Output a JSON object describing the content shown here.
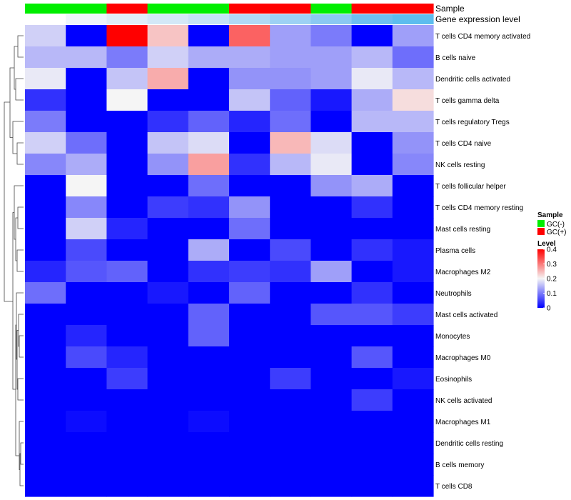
{
  "chart_data": {
    "type": "heatmap",
    "annotations": [
      {
        "name": "Sample",
        "values": [
          "GC(-)",
          "GC(-)",
          "GC(+)",
          "GC(-)",
          "GC(-)",
          "GC(+)",
          "GC(+)",
          "GC(-)",
          "GC(+)",
          "GC(+)"
        ],
        "colors": {
          "GC(-)": "#00ee00",
          "GC(+)": "#ff0000"
        }
      },
      {
        "name": "Gene expression level",
        "colors_per_column": [
          "#ffffff",
          "#eef5fb",
          "#e0eef8",
          "#d3e8f7",
          "#c5e2f6",
          "#b0d9f5",
          "#9dd1f4",
          "#8bc9f2",
          "#6ebef0",
          "#5dbdee"
        ]
      }
    ],
    "rows": [
      "T cells CD4 memory activated",
      "B cells naive",
      "Dendritic cells activated",
      "T cells gamma delta",
      "T cells regulatory  Tregs",
      "T cells CD4 naive",
      "NK cells resting",
      "T cells follicular helper",
      "T cells CD4 memory resting",
      "Mast cells resting",
      "Plasma cells",
      "Macrophages M2",
      "Neutrophils",
      "Mast cells activated",
      "Monocytes",
      "Macrophages M0",
      "Eosinophils",
      "NK cells activated",
      "Macrophages M1",
      "Dendritic cells resting",
      "B cells memory",
      "T cells CD8"
    ],
    "values": [
      [
        0.17,
        0.0,
        0.4,
        0.24,
        0.0,
        0.32,
        0.13,
        0.1,
        0.0,
        0.13
      ],
      [
        0.15,
        0.15,
        0.1,
        0.17,
        0.14,
        0.14,
        0.13,
        0.13,
        0.15,
        0.09
      ],
      [
        0.19,
        0.0,
        0.16,
        0.26,
        0.0,
        0.12,
        0.12,
        0.13,
        0.19,
        0.15
      ],
      [
        0.04,
        0.0,
        0.2,
        0.0,
        0.0,
        0.16,
        0.08,
        0.02,
        0.14,
        0.22
      ],
      [
        0.1,
        0.0,
        0.0,
        0.04,
        0.08,
        0.03,
        0.09,
        0.0,
        0.15,
        0.15
      ],
      [
        0.17,
        0.09,
        0.0,
        0.16,
        0.18,
        0.0,
        0.25,
        0.18,
        0.0,
        0.12
      ],
      [
        0.11,
        0.14,
        0.0,
        0.12,
        0.27,
        0.04,
        0.15,
        0.19,
        0.0,
        0.11
      ],
      [
        0.0,
        0.2,
        0.0,
        0.0,
        0.09,
        0.0,
        0.0,
        0.12,
        0.14,
        0.0
      ],
      [
        0.0,
        0.11,
        0.0,
        0.05,
        0.04,
        0.12,
        0.0,
        0.0,
        0.04,
        0.0
      ],
      [
        0.0,
        0.17,
        0.03,
        0.0,
        0.0,
        0.09,
        0.0,
        0.0,
        0.0,
        0.0
      ],
      [
        0.0,
        0.06,
        0.0,
        0.0,
        0.14,
        0.0,
        0.06,
        0.0,
        0.04,
        0.02
      ],
      [
        0.03,
        0.07,
        0.08,
        0.0,
        0.04,
        0.05,
        0.04,
        0.13,
        0.0,
        0.02
      ],
      [
        0.09,
        0.0,
        0.0,
        0.02,
        0.0,
        0.08,
        0.0,
        0.0,
        0.04,
        0.0
      ],
      [
        0.0,
        0.0,
        0.0,
        0.0,
        0.08,
        0.0,
        0.0,
        0.07,
        0.07,
        0.05
      ],
      [
        0.0,
        0.03,
        0.0,
        0.0,
        0.08,
        0.0,
        0.0,
        0.0,
        0.0,
        0.0
      ],
      [
        0.0,
        0.06,
        0.03,
        0.0,
        0.0,
        0.0,
        0.0,
        0.0,
        0.07,
        0.0
      ],
      [
        0.0,
        0.0,
        0.05,
        0.0,
        0.0,
        0.0,
        0.05,
        0.0,
        0.0,
        0.02
      ],
      [
        0.0,
        0.0,
        0.0,
        0.0,
        0.0,
        0.0,
        0.0,
        0.0,
        0.05,
        0.0
      ],
      [
        0.0,
        0.01,
        0.0,
        0.0,
        0.01,
        0.0,
        0.0,
        0.0,
        0.0,
        0.0
      ],
      [
        0.0,
        0.0,
        0.0,
        0.0,
        0.0,
        0.0,
        0.0,
        0.0,
        0.0,
        0.0
      ],
      [
        0.0,
        0.0,
        0.0,
        0.0,
        0.0,
        0.0,
        0.0,
        0.0,
        0.0,
        0.0
      ],
      [
        0.0,
        0.0,
        0.0,
        0.0,
        0.0,
        0.0,
        0.0,
        0.0,
        0.0,
        0.0
      ]
    ],
    "color_scale": {
      "stops": [
        {
          "value": 0,
          "color": "#0000ff"
        },
        {
          "value": 0.2,
          "color": "#f5f5f5"
        },
        {
          "value": 0.4,
          "color": "#ff0000"
        }
      ]
    },
    "legend": {
      "placement": "right",
      "sample_title": "Sample",
      "sample_entries": [
        {
          "label": "GC(-)",
          "color": "#00ee00"
        },
        {
          "label": "GC(+)",
          "color": "#ff0000"
        }
      ],
      "level_title": "Level",
      "level_ticks": [
        "0.4",
        "0.3",
        "0.2",
        "0.1",
        "0"
      ]
    },
    "row_dendrogram": true,
    "grid": false
  }
}
